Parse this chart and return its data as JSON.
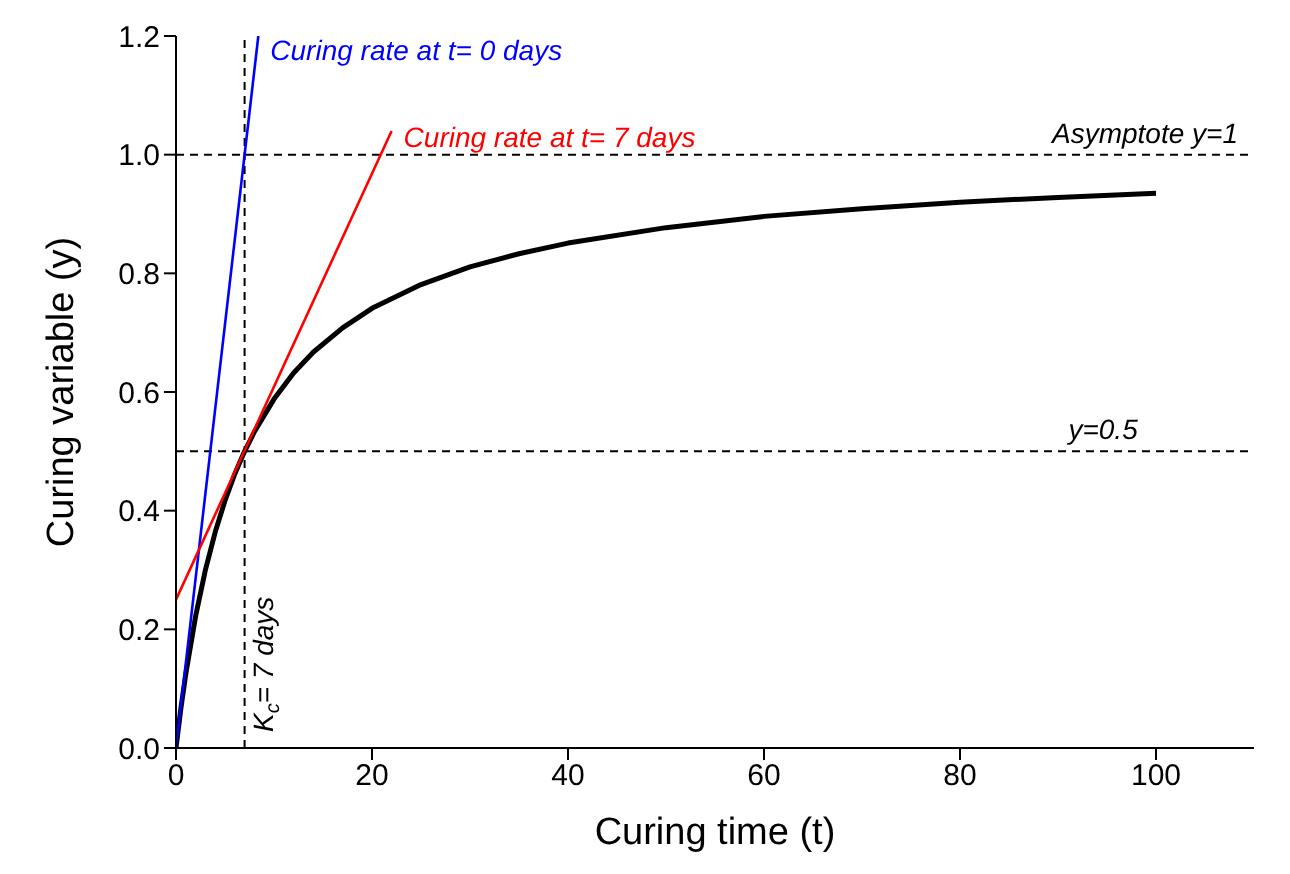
{
  "chart_data": {
    "type": "line",
    "xlabel": "Curing time (t)",
    "ylabel": "Curing variable (y)",
    "xlim": [
      0,
      110
    ],
    "xticks": [
      0,
      20,
      40,
      60,
      80,
      100
    ],
    "ylim": [
      0,
      1.2
    ],
    "yticks": [
      {
        "value": 0,
        "label": "0.0"
      },
      {
        "value": 0.2,
        "label": "0.2"
      },
      {
        "value": 0.4,
        "label": "0.4"
      },
      {
        "value": 0.6,
        "label": "0.6"
      },
      {
        "value": 0.8,
        "label": "0.8"
      },
      {
        "value": 1,
        "label": "1.0"
      },
      {
        "value": 1.2,
        "label": "1.2"
      }
    ],
    "marker": "none",
    "line_style": "solid",
    "series": [
      {
        "color": "#000000",
        "x": [
          0,
          0.5,
          1,
          2,
          3,
          4,
          5,
          6,
          7,
          8,
          10,
          12,
          14,
          17,
          20,
          25,
          30,
          35,
          40,
          50,
          60,
          70,
          80,
          90,
          100
        ],
        "values": [
          0,
          0.067,
          0.125,
          0.222,
          0.3,
          0.364,
          0.417,
          0.462,
          0.5,
          0.533,
          0.588,
          0.632,
          0.667,
          0.708,
          0.741,
          0.781,
          0.811,
          0.833,
          0.851,
          0.877,
          0.896,
          0.909,
          0.92,
          0.928,
          0.935
        ]
      },
      {
        "name": "Curing rate at t= 0 days",
        "color": "#0000ff",
        "x": [
          0,
          8.4
        ],
        "values": [
          0,
          1.2
        ]
      },
      {
        "name": "Curing rate at t= 7 days",
        "color": "#ff0000",
        "x": [
          0,
          22
        ],
        "values": [
          0.25,
          1.04
        ]
      }
    ],
    "ref_lines": [
      {
        "axis": "y",
        "value": 1,
        "label": "Asymptote y=1",
        "line_style": "dashed"
      },
      {
        "axis": "y",
        "value": 0.5,
        "label": "y=0.5",
        "line_style": "dashed"
      },
      {
        "axis": "x",
        "value": 7,
        "label": "K$_{c}$= 7 days",
        "line_style": "dashed"
      }
    ]
  }
}
